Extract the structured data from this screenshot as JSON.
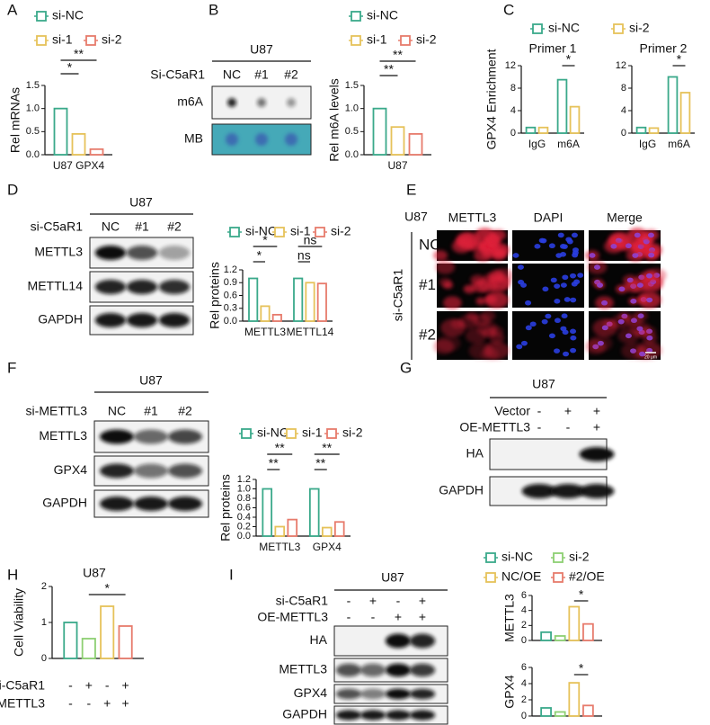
{
  "panel_labels": [
    "A",
    "B",
    "C",
    "D",
    "E",
    "F",
    "G",
    "H",
    "I"
  ],
  "chart_data": [
    {
      "type": "bar",
      "ylabel": "Rel mRNAs",
      "categories": [
        "U87 GPX4"
      ],
      "series": [
        {
          "name": "si-NC",
          "color": "#3aa98a",
          "values": [
            1.0
          ]
        },
        {
          "name": "si-1",
          "color": "#e6c25a",
          "values": [
            0.45
          ]
        },
        {
          "name": "si-2",
          "color": "#e77b6c",
          "values": [
            0.12
          ]
        }
      ],
      "ylim": [
        0,
        1.5
      ],
      "yticks": [
        {
          "value": 0,
          "label": "0.0"
        },
        {
          "value": 0.5,
          "label": "0.5"
        },
        {
          "value": 1,
          "label": "1.0"
        },
        {
          "value": 1.5,
          "label": "1.5"
        }
      ],
      "annotations": [
        "*",
        "**"
      ]
    },
    {
      "type": "bar",
      "ylabel": "Rel m6A levels",
      "categories": [
        "U87"
      ],
      "series": [
        {
          "name": "si-NC",
          "color": "#3aa98a",
          "values": [
            1.0
          ]
        },
        {
          "name": "si-1",
          "color": "#e6c25a",
          "values": [
            0.6
          ]
        },
        {
          "name": "si-2",
          "color": "#e77b6c",
          "values": [
            0.45
          ]
        }
      ],
      "ylim": [
        0,
        1.5
      ],
      "yticks": [
        {
          "value": 0,
          "label": "0.0"
        },
        {
          "value": 0.5,
          "label": "0.5"
        },
        {
          "value": 1,
          "label": "1.0"
        },
        {
          "value": 1.5,
          "label": "1.5"
        }
      ],
      "annotations": [
        "**",
        "**"
      ]
    },
    {
      "type": "bar",
      "title": "Primer 1",
      "ylabel": "GPX4 Enrichment",
      "categories": [
        "IgG",
        "m6A"
      ],
      "series": [
        {
          "name": "si-NC",
          "color": "#3aa98a",
          "values": [
            1.0,
            9.5
          ]
        },
        {
          "name": "si-2",
          "color": "#e6c25a",
          "values": [
            1.0,
            4.7
          ]
        }
      ],
      "ylim": [
        0,
        12
      ],
      "yticks": [
        0,
        4,
        8,
        12
      ],
      "annotations": [
        "*"
      ]
    },
    {
      "type": "bar",
      "title": "Primer 2",
      "categories": [
        "IgG",
        "m6A"
      ],
      "series": [
        {
          "color": "#3aa98a",
          "values": [
            1.0,
            10.0
          ]
        },
        {
          "color": "#e6c25a",
          "values": [
            0.9,
            7.2
          ]
        }
      ],
      "ylim": [
        0,
        12
      ],
      "yticks": [
        0,
        4,
        8,
        12
      ],
      "annotations": [
        "*"
      ]
    },
    {
      "type": "bar",
      "ylabel": "Rel proteins",
      "categories": [
        "METTL3",
        "METTL14"
      ],
      "series": [
        {
          "name": "si-NC",
          "color": "#3aa98a",
          "values": [
            1.0,
            1.0
          ]
        },
        {
          "name": "si-1",
          "color": "#e6c25a",
          "values": [
            0.35,
            0.9
          ]
        },
        {
          "name": "si-2",
          "color": "#e77b6c",
          "values": [
            0.15,
            0.88
          ]
        }
      ],
      "ylim": [
        0,
        1.2
      ],
      "yticks": [
        {
          "value": 0,
          "label": "0.0"
        },
        {
          "value": 0.3,
          "label": "0.3"
        },
        {
          "value": 0.6,
          "label": "0.6"
        },
        {
          "value": 0.9,
          "label": "0.9"
        },
        {
          "value": 1.2,
          "label": "1.2"
        }
      ],
      "annotations": [
        "*",
        "*",
        "ns",
        "ns"
      ]
    },
    {
      "type": "bar",
      "ylabel": "Rel proteins",
      "categories": [
        "METTL3",
        "GPX4"
      ],
      "series": [
        {
          "name": "si-NC",
          "color": "#3aa98a",
          "values": [
            1.0,
            1.0
          ]
        },
        {
          "name": "si-1",
          "color": "#e6c25a",
          "values": [
            0.2,
            0.18
          ]
        },
        {
          "name": "si-2",
          "color": "#e77b6c",
          "values": [
            0.35,
            0.3
          ]
        }
      ],
      "ylim": [
        0,
        1.2
      ],
      "yticks": [
        {
          "value": 0,
          "label": "0.0"
        },
        {
          "value": 0.2,
          "label": "0.2"
        },
        {
          "value": 0.4,
          "label": "0.4"
        },
        {
          "value": 0.6,
          "label": "0.6"
        },
        {
          "value": 0.8,
          "label": "0.8"
        },
        {
          "value": 1,
          "label": "1.0"
        },
        {
          "value": 1.2,
          "label": "1.2"
        }
      ],
      "annotations": [
        "**",
        "**",
        "**",
        "**"
      ]
    },
    {
      "type": "bar",
      "title": "U87",
      "ylabel": "Cell Viability",
      "categories": [
        null
      ],
      "series": [
        {
          "color": "#3aa98a",
          "values": [
            1.0
          ]
        },
        {
          "color": "#8dcf72",
          "values": [
            0.55
          ]
        },
        {
          "color": "#e6c25a",
          "values": [
            1.45
          ]
        },
        {
          "color": "#e77b6c",
          "values": [
            0.9
          ]
        }
      ],
      "ylim": [
        0,
        2
      ],
      "yticks": [
        0,
        1,
        2
      ],
      "annotations": [
        "*"
      ],
      "conditions": [
        {
          "name": "si-C5aR1",
          "signs": [
            "-",
            "+",
            "-",
            "+"
          ]
        },
        {
          "name": "OE-METTL3",
          "signs": [
            "-",
            "-",
            "+",
            "+"
          ]
        }
      ]
    },
    {
      "type": "bar",
      "ylabel": "METTL3",
      "categories": [
        null
      ],
      "series": [
        {
          "name": "si-NC",
          "color": "#3aa98a",
          "values": [
            1.1
          ]
        },
        {
          "name": "si-2",
          "color": "#8dcf72",
          "values": [
            0.6
          ]
        },
        {
          "name": "NC/OE",
          "color": "#e6c25a",
          "values": [
            4.5
          ]
        },
        {
          "name": "#2/OE",
          "color": "#e77b6c",
          "values": [
            2.2
          ]
        }
      ],
      "ylim": [
        0,
        6
      ],
      "yticks": [
        0,
        2,
        4,
        6
      ],
      "annotations": [
        "*"
      ]
    },
    {
      "type": "bar",
      "ylabel": "GPX4",
      "categories": [
        null
      ],
      "series": [
        {
          "color": "#3aa98a",
          "values": [
            1.0
          ]
        },
        {
          "color": "#8dcf72",
          "values": [
            0.5
          ]
        },
        {
          "color": "#e6c25a",
          "values": [
            4.1
          ]
        },
        {
          "color": "#e77b6c",
          "values": [
            1.3
          ]
        }
      ],
      "ylim": [
        0,
        6
      ],
      "yticks": [
        0,
        2,
        4,
        6
      ],
      "annotations": [
        "*"
      ]
    }
  ],
  "blots": [
    {
      "title": "U87",
      "condition": "Si-C5aR1",
      "lanes": [
        "NC",
        "#1",
        "#2"
      ],
      "rows": [
        "m6A",
        "MB"
      ]
    },
    {
      "title": "U87",
      "condition": "si-C5aR1",
      "lanes": [
        "NC",
        "#1",
        "#2"
      ],
      "rows": [
        "METTL3",
        "METTL14",
        "GAPDH"
      ]
    },
    {
      "title": "U87",
      "condition": "si-METTL3",
      "lanes": [
        "NC",
        "#1",
        "#2"
      ],
      "rows": [
        "METTL3",
        "GPX4",
        "GAPDH"
      ]
    },
    {
      "title": "U87",
      "conditions": [
        {
          "name": "Vector",
          "signs": [
            "-",
            "+",
            "+"
          ]
        },
        {
          "name": "OE-METTL3",
          "signs": [
            "-",
            "-",
            "+"
          ]
        }
      ],
      "rows": [
        "HA",
        "GAPDH"
      ]
    },
    {
      "title": "U87",
      "conditions": [
        {
          "name": "si-C5aR1",
          "signs": [
            "-",
            "+",
            "-",
            "+"
          ]
        },
        {
          "name": "OE-METTL3",
          "signs": [
            "-",
            "-",
            "+",
            "+"
          ]
        }
      ],
      "rows": [
        "HA",
        "METTL3",
        "GPX4",
        "GAPDH"
      ]
    }
  ],
  "if_panel": {
    "title": "U87",
    "columns": [
      "METTL3",
      "DAPI",
      "Merge"
    ],
    "rows": [
      "NC",
      "#1",
      "#2"
    ],
    "side_label": "si-C5aR1",
    "scale_bar": "20 μm"
  }
}
